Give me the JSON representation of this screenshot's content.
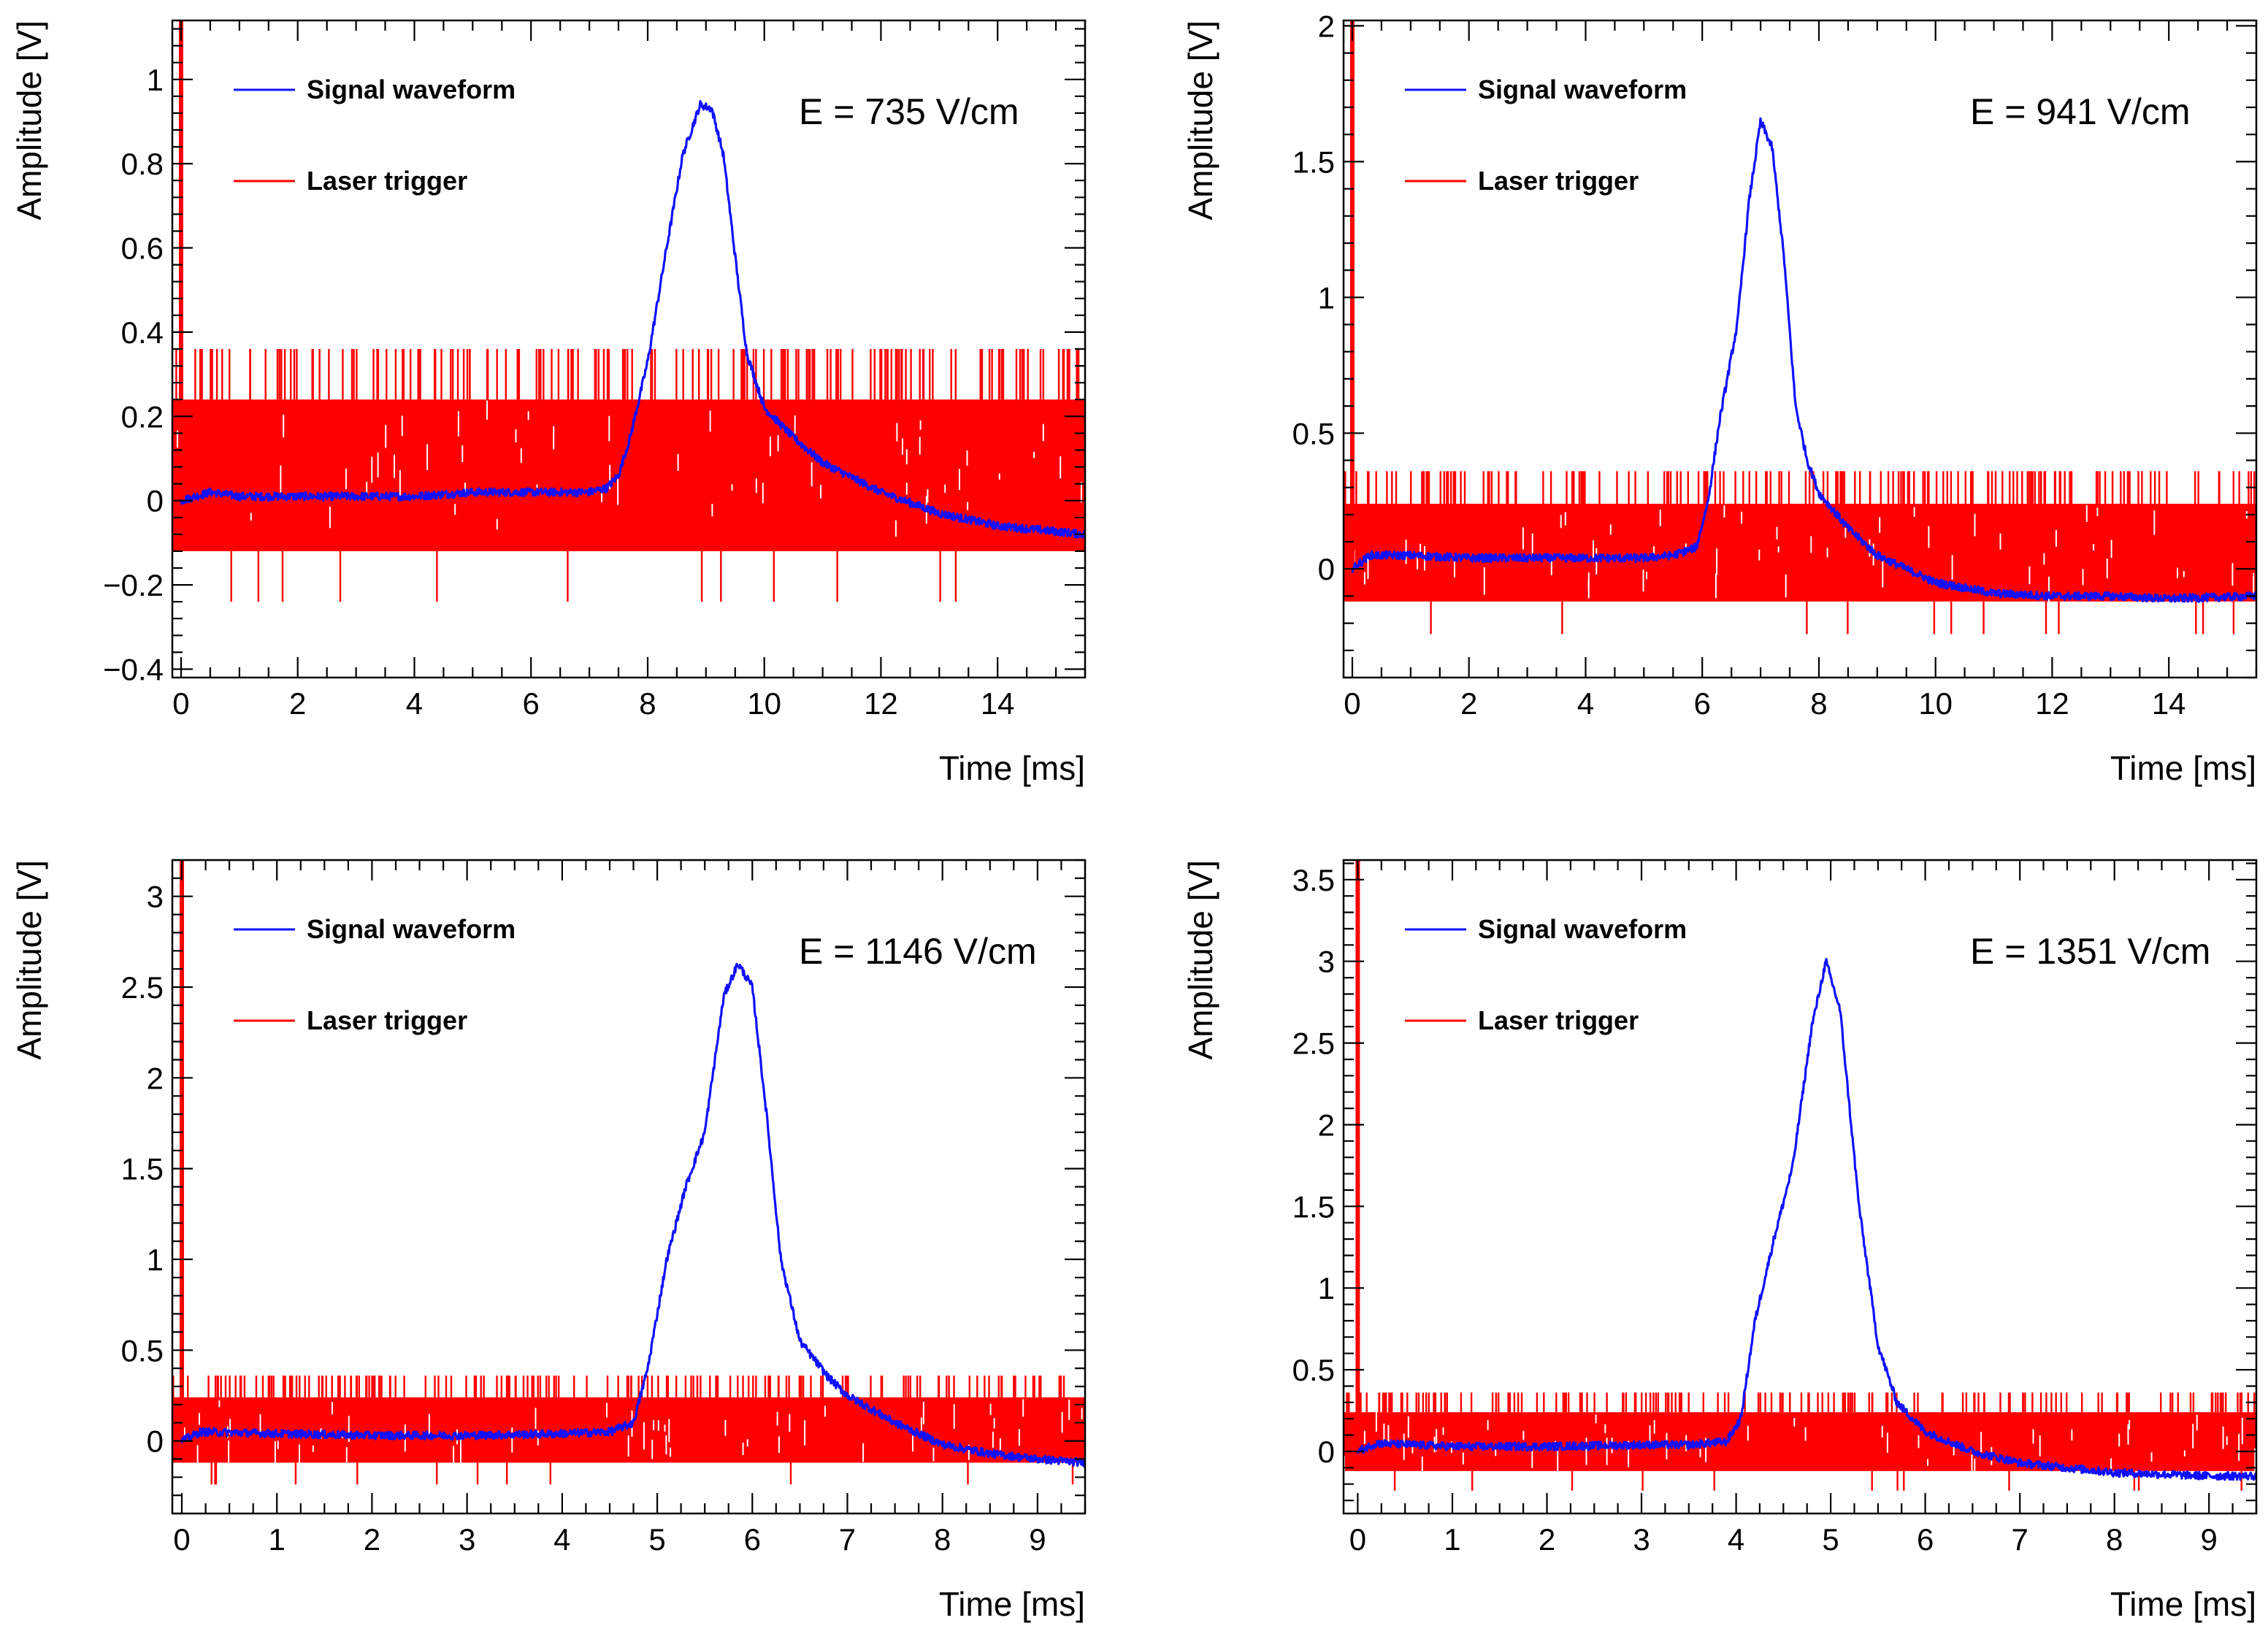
{
  "colors": {
    "signal": "#1010ff",
    "trigger": "#ff0000",
    "frame": "#000000"
  },
  "chart_data": [
    {
      "type": "line",
      "panel": "top-left",
      "xlabel": "Time [ms]",
      "ylabel": "Amplitude [V]",
      "xlim": [
        -0.15,
        15.5
      ],
      "ylim": [
        -0.42,
        1.14
      ],
      "xticks": [
        0,
        2,
        4,
        6,
        8,
        10,
        12,
        14
      ],
      "xtick_labels": [
        "0",
        "2",
        "4",
        "6",
        "8",
        "10",
        "12",
        "14"
      ],
      "yticks": [
        -0.4,
        -0.2,
        0,
        0.2,
        0.4,
        0.6,
        0.8,
        1
      ],
      "ytick_labels": [
        "−0.4",
        "−0.2",
        "0",
        "0.2",
        "0.4",
        "0.6",
        "0.8",
        "1"
      ],
      "annotation": "E = 735 V/cm",
      "legend": [
        "Signal waveform",
        "Laser trigger"
      ],
      "series": [
        {
          "name": "Signal waveform",
          "color": "#1010ff",
          "x": [
            0,
            0.5,
            1,
            2,
            3,
            4,
            5,
            6,
            7,
            7.3,
            7.5,
            7.7,
            8.0,
            8.3,
            8.6,
            8.9,
            9.1,
            9.3,
            9.5,
            9.7,
            10.0,
            10.5,
            11,
            12,
            13,
            14,
            15.5
          ],
          "y": [
            0.0,
            0.02,
            0.01,
            0.01,
            0.01,
            0.01,
            0.02,
            0.02,
            0.02,
            0.03,
            0.06,
            0.15,
            0.33,
            0.58,
            0.82,
            0.94,
            0.93,
            0.82,
            0.58,
            0.35,
            0.22,
            0.15,
            0.09,
            0.02,
            -0.03,
            -0.06,
            -0.08
          ]
        },
        {
          "name": "Laser trigger",
          "color": "#ff0000",
          "first_pulse_x": 0.0,
          "first_pulse_top": 1.14,
          "noise_band": [
            -0.12,
            0.24
          ],
          "spike_high": 0.36,
          "spike_low": -0.24
        }
      ]
    },
    {
      "type": "line",
      "panel": "top-right",
      "xlabel": "Time [ms]",
      "ylabel": "Amplitude [V]",
      "xlim": [
        -0.15,
        15.5
      ],
      "ylim": [
        -0.4,
        2.02
      ],
      "xticks": [
        0,
        2,
        4,
        6,
        8,
        10,
        12,
        14
      ],
      "xtick_labels": [
        "0",
        "2",
        "4",
        "6",
        "8",
        "10",
        "12",
        "14"
      ],
      "yticks": [
        0,
        0.5,
        1,
        1.5,
        2
      ],
      "ytick_labels": [
        "0",
        "0.5",
        "1",
        "1.5",
        "2"
      ],
      "annotation": "E = 941 V/cm",
      "legend": [
        "Signal waveform",
        "Laser trigger"
      ],
      "series": [
        {
          "name": "Signal waveform",
          "color": "#1010ff",
          "x": [
            0,
            0.3,
            1,
            2,
            3,
            4,
            5,
            5.5,
            5.9,
            6.1,
            6.3,
            6.6,
            6.8,
            7.0,
            7.2,
            7.4,
            7.6,
            7.8,
            8.0,
            8.5,
            9,
            10,
            11,
            12,
            13,
            14,
            15.5
          ],
          "y": [
            0.0,
            0.05,
            0.05,
            0.04,
            0.04,
            0.04,
            0.04,
            0.05,
            0.08,
            0.25,
            0.55,
            0.9,
            1.35,
            1.65,
            1.55,
            1.15,
            0.6,
            0.4,
            0.28,
            0.15,
            0.05,
            -0.05,
            -0.09,
            -0.1,
            -0.1,
            -0.11,
            -0.1
          ]
        },
        {
          "name": "Laser trigger",
          "color": "#ff0000",
          "first_pulse_x": 0.0,
          "first_pulse_top": 2.02,
          "noise_band": [
            -0.12,
            0.24
          ],
          "spike_high": 0.36,
          "spike_low": -0.24
        }
      ]
    },
    {
      "type": "line",
      "panel": "bottom-left",
      "xlabel": "Time [ms]",
      "ylabel": "Amplitude [V]",
      "xlim": [
        -0.1,
        9.5
      ],
      "ylim": [
        -0.4,
        3.2
      ],
      "xticks": [
        0,
        1,
        2,
        3,
        4,
        5,
        6,
        7,
        8,
        9
      ],
      "xtick_labels": [
        "0",
        "1",
        "2",
        "3",
        "4",
        "5",
        "6",
        "7",
        "8",
        "9"
      ],
      "yticks": [
        0,
        0.5,
        1,
        1.5,
        2,
        2.5,
        3
      ],
      "ytick_labels": [
        "0",
        "0.5",
        "1",
        "1.5",
        "2",
        "2.5",
        "3"
      ],
      "annotation": "E = 1146 V/cm",
      "legend": [
        "Signal waveform",
        "Laser trigger"
      ],
      "series": [
        {
          "name": "Signal waveform",
          "color": "#1010ff",
          "x": [
            0,
            0.2,
            1,
            2,
            3,
            4,
            4.5,
            4.75,
            4.9,
            5.1,
            5.3,
            5.5,
            5.7,
            5.85,
            6.0,
            6.15,
            6.3,
            6.5,
            6.8,
            7,
            7.5,
            8,
            8.5,
            9,
            9.5
          ],
          "y": [
            0.0,
            0.05,
            0.04,
            0.03,
            0.03,
            0.04,
            0.05,
            0.1,
            0.4,
            1.0,
            1.4,
            1.7,
            2.45,
            2.63,
            2.5,
            1.8,
            1.0,
            0.55,
            0.35,
            0.25,
            0.1,
            -0.02,
            -0.07,
            -0.1,
            -0.12
          ]
        },
        {
          "name": "Laser trigger",
          "color": "#ff0000",
          "first_pulse_x": 0.0,
          "first_pulse_top": 3.2,
          "noise_band": [
            -0.12,
            0.24
          ],
          "spike_high": 0.36,
          "spike_low": -0.24
        }
      ]
    },
    {
      "type": "line",
      "panel": "bottom-right",
      "xlabel": "Time [ms]",
      "ylabel": "Amplitude [V]",
      "xlim": [
        -0.15,
        9.5
      ],
      "ylim": [
        -0.38,
        3.62
      ],
      "xticks": [
        0,
        1,
        2,
        3,
        4,
        5,
        6,
        7,
        8,
        9
      ],
      "xtick_labels": [
        "0",
        "1",
        "2",
        "3",
        "4",
        "5",
        "6",
        "7",
        "8",
        "9"
      ],
      "yticks": [
        0,
        0.5,
        1,
        1.5,
        2,
        2.5,
        3,
        3.5
      ],
      "ytick_labels": [
        "0",
        "0.5",
        "1",
        "1.5",
        "2",
        "2.5",
        "3",
        "3.5"
      ],
      "annotation": "E = 1351 V/cm",
      "legend": [
        "Signal waveform",
        "Laser trigger"
      ],
      "series": [
        {
          "name": "Signal waveform",
          "color": "#1010ff",
          "x": [
            0,
            0.2,
            1,
            2,
            3,
            3.5,
            3.9,
            4.05,
            4.2,
            4.4,
            4.6,
            4.8,
            4.95,
            5.1,
            5.3,
            5.5,
            5.7,
            6.0,
            6.5,
            7,
            7.5,
            8,
            8.5,
            9,
            9.5
          ],
          "y": [
            0.0,
            0.05,
            0.03,
            0.03,
            0.04,
            0.04,
            0.06,
            0.2,
            0.8,
            1.3,
            1.75,
            2.6,
            3.0,
            2.7,
            1.5,
            0.65,
            0.3,
            0.12,
            0.0,
            -0.07,
            -0.1,
            -0.13,
            -0.14,
            -0.15,
            -0.15
          ]
        },
        {
          "name": "Laser trigger",
          "color": "#ff0000",
          "first_pulse_x": 0.0,
          "first_pulse_top": 3.62,
          "noise_band": [
            -0.12,
            0.24
          ],
          "spike_high": 0.36,
          "spike_low": -0.24
        }
      ]
    }
  ]
}
